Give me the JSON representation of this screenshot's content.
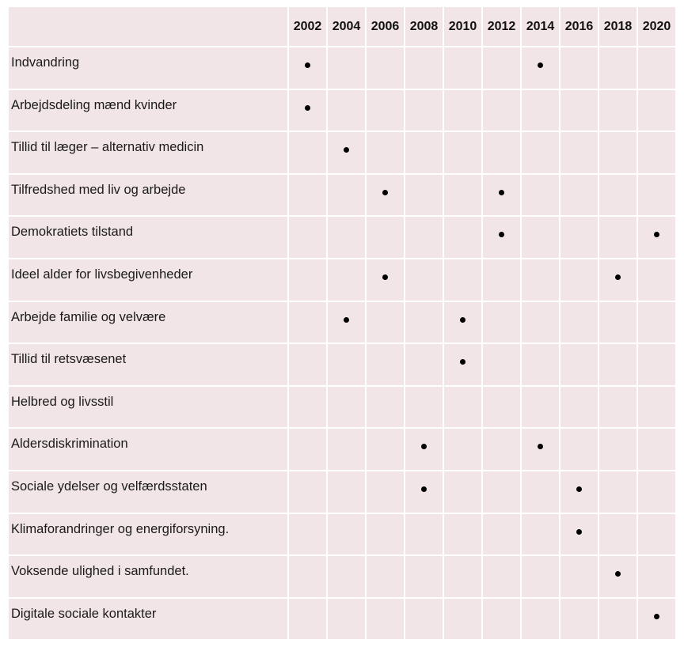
{
  "years": [
    "2002",
    "2004",
    "2006",
    "2008",
    "2010",
    "2012",
    "2014",
    "2016",
    "2018",
    "2020"
  ],
  "rows": [
    {
      "label": "Indvandring",
      "marks": [
        "2002",
        "2014"
      ]
    },
    {
      "label": "Arbejdsdeling mænd kvinder",
      "marks": [
        "2002"
      ]
    },
    {
      "label": "Tillid til læger – alternativ medicin",
      "marks": [
        "2004"
      ]
    },
    {
      "label": "Tilfredshed med liv og arbejde",
      "marks": [
        "2006",
        "2012"
      ]
    },
    {
      "label": "Demokratiets tilstand",
      "marks": [
        "2012",
        "2020"
      ]
    },
    {
      "label": "Ideel alder for livsbegivenheder",
      "marks": [
        "2006",
        "2018"
      ]
    },
    {
      "label": "Arbejde familie og velvære",
      "marks": [
        "2004",
        "2010"
      ]
    },
    {
      "label": "Tillid til retsvæsenet",
      "marks": [
        "2010"
      ]
    },
    {
      "label": "Helbred og livsstil",
      "marks": []
    },
    {
      "label": "Aldersdiskrimination",
      "marks": [
        "2008",
        "2014"
      ]
    },
    {
      "label": "Sociale ydelser og velfærdsstaten",
      "marks": [
        "2008",
        "2016"
      ]
    },
    {
      "label": "Klimaforandringer og energiforsyning.",
      "marks": [
        "2016"
      ]
    },
    {
      "label": "Voksende ulighed i samfundet.",
      "marks": [
        "2018"
      ]
    },
    {
      "label": "Digitale sociale kontakter",
      "marks": [
        "2020"
      ]
    }
  ],
  "colors": {
    "cell_background": "#f2e5e7",
    "mark": "#000000"
  }
}
